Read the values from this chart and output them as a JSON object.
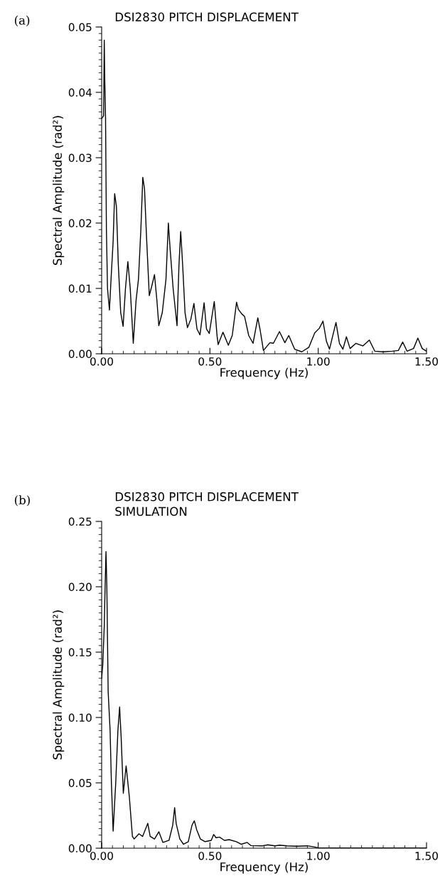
{
  "chart_data": [
    {
      "type": "line",
      "title": "DSI2830 PITCH DISPLACEMENT",
      "xlabel": "Frequency (Hz)",
      "ylabel": "Spectral Amplitude (rad²)",
      "annotations": [
        "(a)"
      ],
      "x": [
        0.0,
        0.009,
        0.012,
        0.014,
        0.018,
        0.022,
        0.027,
        0.036,
        0.044,
        0.053,
        0.06,
        0.068,
        0.077,
        0.088,
        0.099,
        0.11,
        0.121,
        0.132,
        0.146,
        0.159,
        0.17,
        0.181,
        0.19,
        0.198,
        0.207,
        0.22,
        0.231,
        0.244,
        0.255,
        0.264,
        0.28,
        0.297,
        0.308,
        0.316,
        0.33,
        0.348,
        0.357,
        0.365,
        0.374,
        0.385,
        0.396,
        0.412,
        0.426,
        0.44,
        0.454,
        0.473,
        0.484,
        0.497,
        0.52,
        0.533,
        0.538,
        0.56,
        0.585,
        0.603,
        0.623,
        0.631,
        0.647,
        0.66,
        0.679,
        0.699,
        0.721,
        0.732,
        0.747,
        0.777,
        0.793,
        0.821,
        0.846,
        0.864,
        0.891,
        0.924,
        0.957,
        0.984,
        1.005,
        1.022,
        1.038,
        1.052,
        1.082,
        1.098,
        1.114,
        1.13,
        1.147,
        1.174,
        1.206,
        1.236,
        1.261,
        1.299,
        1.342,
        1.37,
        1.39,
        1.41,
        1.44,
        1.46,
        1.48,
        1.5
      ],
      "series": [
        {
          "color": "#000000",
          "values": [
            0.036,
            0.0364,
            0.048,
            0.0426,
            0.036,
            0.019,
            0.01,
            0.0067,
            0.0118,
            0.0172,
            0.0245,
            0.0226,
            0.0136,
            0.0063,
            0.0042,
            0.01,
            0.0141,
            0.01,
            0.0016,
            0.0082,
            0.0114,
            0.019,
            0.027,
            0.0252,
            0.018,
            0.0089,
            0.0103,
            0.0121,
            0.0082,
            0.0043,
            0.0063,
            0.0114,
            0.02,
            0.0161,
            0.01,
            0.0043,
            0.0136,
            0.0187,
            0.0136,
            0.0063,
            0.004,
            0.0053,
            0.0077,
            0.0038,
            0.0029,
            0.0078,
            0.0038,
            0.0031,
            0.008,
            0.0027,
            0.0014,
            0.0033,
            0.0013,
            0.0028,
            0.0079,
            0.0068,
            0.0061,
            0.0057,
            0.0028,
            0.0016,
            0.0055,
            0.0036,
            0.0005,
            0.0017,
            0.0016,
            0.0034,
            0.0017,
            0.0028,
            0.0007,
            0.0003,
            0.001,
            0.0032,
            0.0039,
            0.005,
            0.0019,
            0.0007,
            0.0048,
            0.0016,
            0.0007,
            0.0026,
            0.0008,
            0.0016,
            0.0012,
            0.0021,
            0.0004,
            0.0003,
            0.0004,
            0.0005,
            0.0018,
            0.0004,
            0.0008,
            0.0024,
            0.0008,
            0.0004
          ]
        }
      ],
      "xlim": [
        0,
        1.5
      ],
      "xticks": [
        {
          "value": 0,
          "label": "0.00"
        },
        {
          "value": 0.5,
          "label": "0.50"
        },
        {
          "value": 1.0,
          "label": "1.00"
        },
        {
          "value": 1.5,
          "label": "1.50"
        }
      ],
      "ylim": [
        0,
        0.05
      ],
      "yticks": [
        {
          "value": 0,
          "label": "0.00"
        },
        {
          "value": 0.01,
          "label": "0.01"
        },
        {
          "value": 0.02,
          "label": "0.02"
        },
        {
          "value": 0.03,
          "label": "0.03"
        },
        {
          "value": 0.04,
          "label": "0.04"
        },
        {
          "value": 0.05,
          "label": "0.05"
        }
      ],
      "grid": false,
      "legend": false
    },
    {
      "type": "line",
      "title": "DSI2830 PITCH DISPLACEMENT",
      "subtitle": "SIMULATION",
      "xlabel": "Frequency (Hz)",
      "ylabel": "Spectral Amplitude (rad²)",
      "annotations": [
        "(b)"
      ],
      "x": [
        0.0,
        0.005,
        0.012,
        0.016,
        0.02,
        0.024,
        0.03,
        0.039,
        0.045,
        0.053,
        0.065,
        0.075,
        0.083,
        0.09,
        0.1,
        0.113,
        0.128,
        0.142,
        0.15,
        0.172,
        0.189,
        0.213,
        0.224,
        0.244,
        0.264,
        0.283,
        0.311,
        0.328,
        0.337,
        0.344,
        0.361,
        0.378,
        0.4,
        0.417,
        0.428,
        0.439,
        0.456,
        0.478,
        0.506,
        0.517,
        0.528,
        0.544,
        0.567,
        0.589,
        0.622,
        0.644,
        0.672,
        0.689,
        0.744,
        0.767,
        0.8,
        0.822,
        0.856,
        0.9,
        0.95,
        0.98,
        1.0,
        1.05,
        1.5
      ],
      "series": [
        {
          "color": "#000000",
          "values": [
            0.13,
            0.14,
            0.17,
            0.2,
            0.227,
            0.2,
            0.12,
            0.09,
            0.05,
            0.013,
            0.05,
            0.09,
            0.108,
            0.085,
            0.042,
            0.063,
            0.039,
            0.009,
            0.007,
            0.011,
            0.009,
            0.019,
            0.009,
            0.007,
            0.0126,
            0.0044,
            0.006,
            0.0175,
            0.031,
            0.019,
            0.007,
            0.003,
            0.005,
            0.0175,
            0.021,
            0.014,
            0.007,
            0.005,
            0.006,
            0.0105,
            0.008,
            0.0085,
            0.006,
            0.0065,
            0.005,
            0.003,
            0.0044,
            0.002,
            0.0018,
            0.0026,
            0.0018,
            0.0023,
            0.0018,
            0.0015,
            0.0018,
            0.001,
            0.0003,
            0.0002,
            0.0001
          ]
        }
      ],
      "xlim": [
        0,
        1.5
      ],
      "xticks": [
        {
          "value": 0,
          "label": "0.00"
        },
        {
          "value": 0.5,
          "label": "0.50"
        },
        {
          "value": 1.0,
          "label": "1.00"
        },
        {
          "value": 1.5,
          "label": "1.50"
        }
      ],
      "ylim": [
        0,
        0.25
      ],
      "yticks": [
        {
          "value": 0,
          "label": "0.00"
        },
        {
          "value": 0.05,
          "label": "0.05"
        },
        {
          "value": 0.1,
          "label": "0.10"
        },
        {
          "value": 0.15,
          "label": "0.15"
        },
        {
          "value": 0.2,
          "label": "0.20"
        },
        {
          "value": 0.25,
          "label": "0.25"
        }
      ],
      "grid": false,
      "legend": false
    }
  ]
}
